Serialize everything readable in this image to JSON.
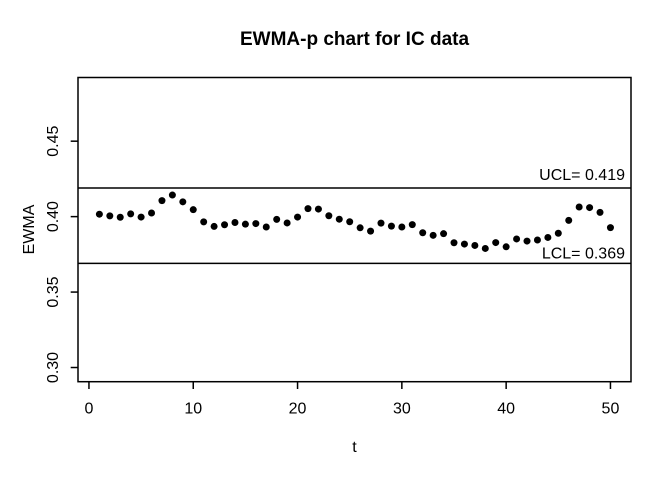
{
  "chart_data": {
    "type": "scatter",
    "title": "EWMA-p chart for IC data",
    "xlabel": "t",
    "ylabel": "EWMA",
    "x_ticks": [
      0,
      10,
      20,
      30,
      40,
      50
    ],
    "y_ticks": [
      0.3,
      0.35,
      0.4,
      0.45
    ],
    "xlim": [
      -1.05,
      51.97
    ],
    "ylim": [
      0.2906,
      0.4922
    ],
    "grid": "off",
    "ucl": {
      "value": 0.419,
      "label": "UCL= 0.419"
    },
    "lcl": {
      "value": 0.369,
      "label": "LCL= 0.369"
    },
    "points": {
      "x_start": 1,
      "y": [
        0.4016,
        0.4005,
        0.3996,
        0.4018,
        0.3997,
        0.4024,
        0.4106,
        0.4143,
        0.4098,
        0.4046,
        0.3965,
        0.3935,
        0.3946,
        0.3961,
        0.395,
        0.3954,
        0.3931,
        0.3982,
        0.3958,
        0.3997,
        0.4053,
        0.405,
        0.4006,
        0.3983,
        0.3966,
        0.3926,
        0.3904,
        0.3957,
        0.3937,
        0.3931,
        0.3947,
        0.3893,
        0.3876,
        0.3887,
        0.3827,
        0.3818,
        0.3809,
        0.3789,
        0.3828,
        0.38,
        0.3852,
        0.3838,
        0.3845,
        0.3862,
        0.389,
        0.3975,
        0.4064,
        0.406,
        0.4028,
        0.3927
      ]
    },
    "point_color": "#000000",
    "line_color": "#000000",
    "background": "#ffffff"
  }
}
